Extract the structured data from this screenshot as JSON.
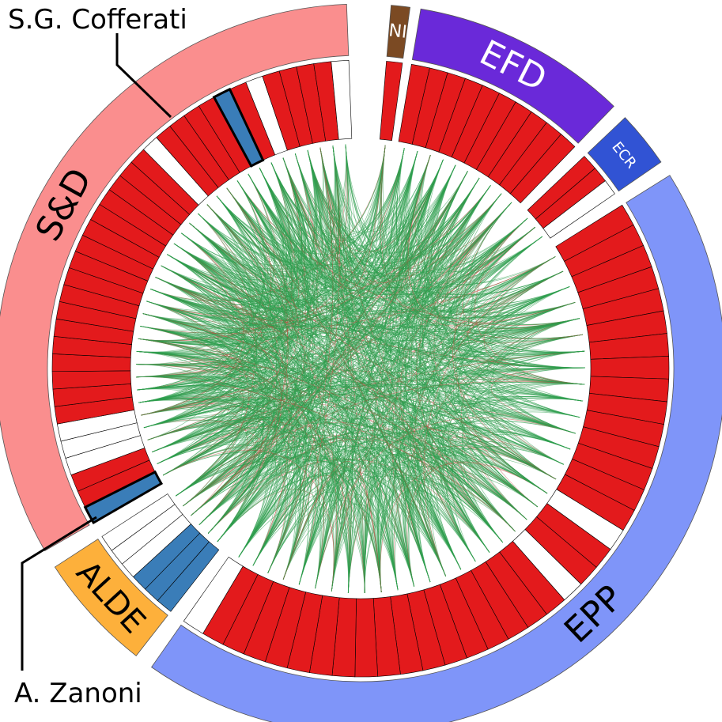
{
  "groups": [
    {
      "key": "ni",
      "label": "NI",
      "color": "#7B4A23",
      "text_color": "#ffffff"
    },
    {
      "key": "efd",
      "label": "EFD",
      "color": "#6A29D9",
      "text_color": "#ffffff"
    },
    {
      "key": "ecr",
      "label": "ECR",
      "color": "#3153D4",
      "text_color": "#ffffff"
    },
    {
      "key": "epp",
      "label": "EPP",
      "color": "#7F95F9",
      "text_color": "#000000"
    },
    {
      "key": "alde",
      "label": "ALDE",
      "color": "#FDB03B",
      "text_color": "#000000"
    },
    {
      "key": "sd",
      "label": "S&D",
      "color": "#FA8E8E",
      "text_color": "#000000"
    }
  ],
  "member_colors": {
    "red": "#E31A1C",
    "blue": "#3A7DB8",
    "white": "#ffffff"
  },
  "edge_colors": {
    "agree": "#2E9E4F",
    "disagree": "#C0483C"
  },
  "members": {
    "ni": [
      "red"
    ],
    "efd": [
      "red",
      "red",
      "red",
      "red",
      "red",
      "red",
      "red",
      "red",
      "red",
      "red"
    ],
    "ecr": [
      "red",
      "red",
      "white"
    ],
    "epp": [
      "red",
      "red",
      "red",
      "red",
      "red",
      "red",
      "red",
      "red",
      "red",
      "red",
      "red",
      "red",
      "red",
      "red",
      "red",
      "white",
      "red",
      "red",
      "white",
      "red",
      "red",
      "red",
      "red",
      "red",
      "red",
      "red",
      "red",
      "red",
      "red",
      "red",
      "red",
      "red",
      "red",
      "red",
      "red",
      "red",
      "white"
    ],
    "alde": [
      "blue",
      "blue",
      "blue",
      "white",
      "white",
      "white"
    ],
    "sd": [
      "blue",
      "red",
      "red",
      "white",
      "white",
      "white",
      "red",
      "red",
      "red",
      "red",
      "red",
      "red",
      "red",
      "red",
      "red",
      "red",
      "red",
      "red",
      "red",
      "red",
      "red",
      "red",
      "red",
      "white",
      "red",
      "red",
      "red",
      "red",
      "blue",
      "red",
      "white",
      "red",
      "red",
      "red",
      "red",
      "white"
    ]
  },
  "callouts": [
    {
      "label": "S.G. Cofferati"
    },
    {
      "label": "A. Zanoni"
    }
  ]
}
